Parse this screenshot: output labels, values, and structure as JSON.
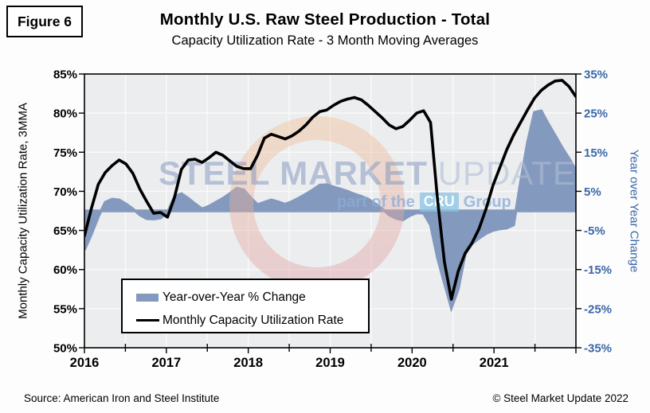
{
  "figure_label": "Figure 6",
  "header": {
    "title": "Monthly U.S. Raw Steel Production - Total",
    "subtitle": "Capacity Utilization Rate - 3 Month Moving Averages"
  },
  "watermark": {
    "word1": "STEEL",
    "word2": "MARKET",
    "word3": "UPDATE",
    "line2_prefix": "part of the",
    "line2_logo": "CRU",
    "line2_suffix": "Group"
  },
  "legend": {
    "area_label": "Year-over-Year % Change",
    "line_label": "Monthly Capacity Utilization Rate"
  },
  "footer": {
    "source": "Source: American Iron and Steel Institute",
    "copyright": "© Steel Market Update 2022"
  },
  "colors": {
    "area": "#8399be",
    "line": "#000000",
    "axis": "#000000",
    "left_tick_text": "#000000",
    "right_tick_text": "#3a67a8",
    "x_tick_text": "#000000",
    "plot_bg": "#ecedef",
    "gridline": "#fafafa",
    "ring_top": "#f3c193",
    "ring_bottom": "#dfa0a3"
  },
  "chart_data": {
    "type": "combo-area-line",
    "x_start": "2016-01",
    "x_end": "2021-12",
    "months": 72,
    "x_axis": {
      "tick_labels": [
        "2016",
        "2017",
        "2018",
        "2019",
        "2020",
        "2021"
      ]
    },
    "left_axis": {
      "title": "Monthly Capacity Utilization Rate, 3MMA",
      "min": 50,
      "max": 85,
      "tick_labels": [
        "85%",
        "80%",
        "75%",
        "70%",
        "65%",
        "60%",
        "55%",
        "50%"
      ]
    },
    "right_axis": {
      "title": "Year over Year Change",
      "min": -35,
      "max": 35,
      "tick_labels": [
        "35%",
        "25%",
        "15%",
        "5%",
        "-5%",
        "-15%",
        "-25%",
        "-35%"
      ]
    },
    "series": [
      {
        "name": "Year-over-Year % Change",
        "type": "area",
        "axis": "right",
        "unit": "%",
        "values": [
          -10.0,
          -6.0,
          -1.5,
          2.2,
          3.0,
          2.8,
          1.8,
          0.5,
          -1.0,
          -2.0,
          -2.1,
          -1.8,
          -0.4,
          3.6,
          4.4,
          3.2,
          1.8,
          0.5,
          1.2,
          2.2,
          3.2,
          4.4,
          5.8,
          5.4,
          3.4,
          1.6,
          2.2,
          2.8,
          2.3,
          1.7,
          2.4,
          3.3,
          4.3,
          5.4,
          6.6,
          6.7,
          6.1,
          5.6,
          5.0,
          4.3,
          3.7,
          3.0,
          1.8,
          0.6,
          -1.0,
          -1.9,
          -2.3,
          -1.2,
          -0.5,
          -0.6,
          -3.6,
          -12.0,
          -18.5,
          -24.8,
          -20.0,
          -11.0,
          -8.4,
          -7.0,
          -5.8,
          -5.0,
          -4.6,
          -4.4,
          -3.6,
          7.4,
          17.5,
          25.2,
          25.6,
          22.3,
          19.3,
          16.2,
          13.4,
          10.4
        ]
      },
      {
        "name": "Monthly Capacity Utilization Rate",
        "type": "line",
        "axis": "left",
        "unit": "%",
        "values": [
          64.3,
          67.8,
          70.9,
          72.4,
          73.3,
          74.0,
          73.5,
          72.3,
          70.3,
          68.7,
          67.2,
          67.3,
          66.7,
          69.2,
          72.8,
          74.0,
          74.1,
          73.7,
          74.3,
          75.0,
          74.6,
          73.9,
          73.2,
          72.9,
          72.9,
          74.6,
          76.8,
          77.3,
          77.0,
          76.7,
          77.1,
          77.7,
          78.5,
          79.5,
          80.2,
          80.4,
          81.0,
          81.5,
          81.8,
          82.0,
          81.7,
          81.0,
          80.2,
          79.4,
          78.5,
          78.0,
          78.3,
          79.1,
          80.0,
          80.3,
          78.8,
          69.0,
          61.0,
          56.2,
          59.8,
          62.1,
          63.4,
          65.2,
          67.7,
          70.7,
          73.0,
          75.3,
          77.2,
          78.8,
          80.4,
          81.9,
          82.9,
          83.6,
          84.1,
          84.2,
          83.4,
          82.1
        ]
      }
    ]
  }
}
